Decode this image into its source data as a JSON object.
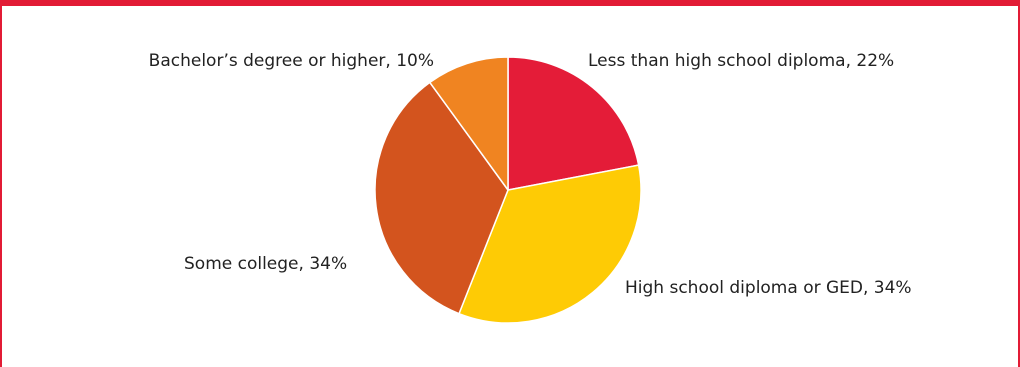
{
  "chart_data": {
    "type": "pie",
    "title": "",
    "slices": [
      {
        "label": "Less than high school diploma, 22%",
        "name": "Less than high school diploma",
        "value": 22,
        "color": "#e41c38"
      },
      {
        "label": "High school diploma or GED, 34%",
        "name": "High school diploma or GED",
        "value": 34,
        "color": "#fecb05"
      },
      {
        "label": "Some college, 34%",
        "name": "Some college",
        "value": 34,
        "color": "#d3541e"
      },
      {
        "label": "Bachelor’s degree or higher, 10%",
        "name": "Bachelor’s degree or higher",
        "value": 10,
        "color": "#f08421"
      }
    ],
    "start_angle_deg": 0,
    "direction": "clockwise"
  },
  "colors": {
    "border": "#e21b35",
    "slice_stroke": "#ffffff",
    "label_text": "#222222"
  }
}
